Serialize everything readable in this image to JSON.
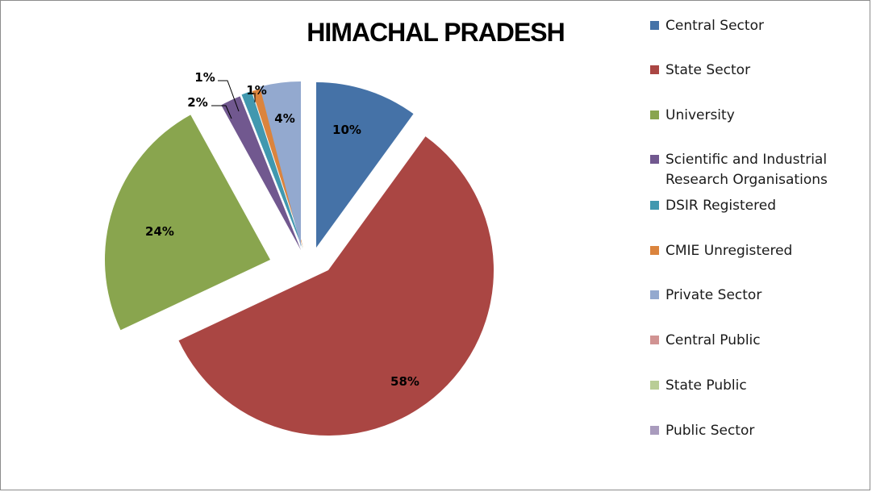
{
  "chart_data": {
    "type": "pie",
    "title": "HIMACHAL PRADESH",
    "slices": [
      {
        "name": "Central Sector",
        "value": 10,
        "label": "10%",
        "color": "#4572A7"
      },
      {
        "name": "State Sector",
        "value": 58,
        "label": "58%",
        "color": "#AA4643"
      },
      {
        "name": "University",
        "value": 24,
        "label": "24%",
        "color": "#89A54E"
      },
      {
        "name": "Scientific and Industrial Research Organisations",
        "value": 2,
        "label": "2%",
        "color": "#71588F"
      },
      {
        "name": "DSIR Registered",
        "value": 1,
        "label": "1%",
        "color": "#4198AF"
      },
      {
        "name": "CMIE Unregistered",
        "value": 1,
        "label": "1%",
        "color": "#DB843D"
      },
      {
        "name": "Private Sector",
        "value": 4,
        "label": "4%",
        "color": "#93A9CF"
      },
      {
        "name": "Central Public",
        "value": 0,
        "label": "",
        "color": "#D19392"
      },
      {
        "name": "State Public",
        "value": 0,
        "label": "",
        "color": "#B9CD96"
      },
      {
        "name": "Public Sector",
        "value": 0,
        "label": "",
        "color": "#A99BBD"
      }
    ],
    "legend_position": "right",
    "exploded": true
  }
}
